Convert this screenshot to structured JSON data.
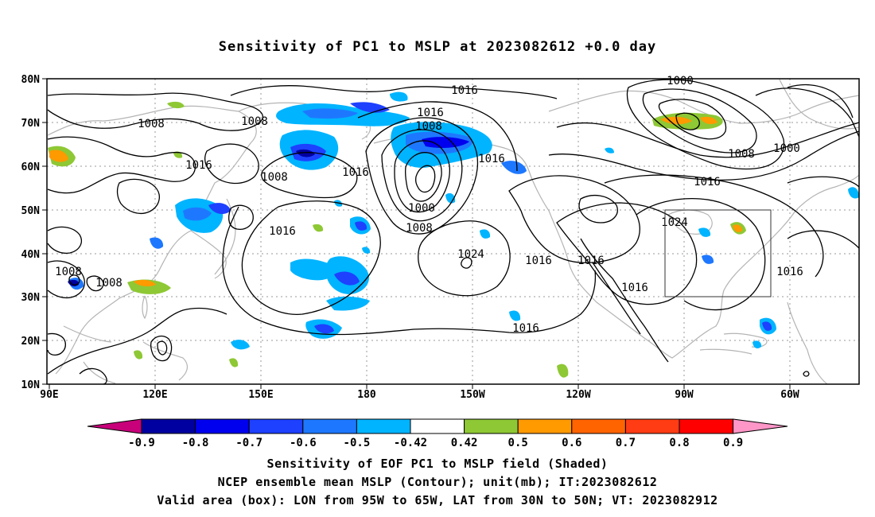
{
  "title": "Sensitivity of PC1 to MSLP at 2023082612 +0.0 day",
  "lat_labels": [
    "80N",
    "70N",
    "60N",
    "50N",
    "40N",
    "30N",
    "20N",
    "10N"
  ],
  "lon_labels": [
    "90E",
    "120E",
    "150E",
    "180",
    "150W",
    "120W",
    "90W",
    "60W"
  ],
  "contour_labels": [
    {
      "text": "1016"
    },
    {
      "text": "1016"
    },
    {
      "text": "1008"
    },
    {
      "text": "1008"
    },
    {
      "text": "1008"
    },
    {
      "text": "1016"
    },
    {
      "text": "1008"
    },
    {
      "text": "1016"
    },
    {
      "text": "1016"
    },
    {
      "text": "1000"
    },
    {
      "text": "1008"
    },
    {
      "text": "1016"
    },
    {
      "text": "1024"
    },
    {
      "text": "1016"
    },
    {
      "text": "1016"
    },
    {
      "text": "1016"
    },
    {
      "text": "1016"
    },
    {
      "text": "1000"
    },
    {
      "text": "1008"
    },
    {
      "text": "1000"
    },
    {
      "text": "1016"
    },
    {
      "text": "1024"
    },
    {
      "text": "1016"
    },
    {
      "text": "1008"
    },
    {
      "text": "1008"
    }
  ],
  "colorbar": {
    "colors": [
      "#c8007a",
      "#0000a0",
      "#0000ee",
      "#1e40ff",
      "#1e78ff",
      "#00b4ff",
      "#ffffff",
      "#8ec834",
      "#ff9a00",
      "#ff6400",
      "#ff3c14",
      "#ff0000",
      "#ff96c8"
    ],
    "labels": [
      "-0.9",
      "-0.8",
      "-0.7",
      "-0.6",
      "-0.5",
      "-0.42",
      "0.42",
      "0.5",
      "0.6",
      "0.7",
      "0.8",
      "0.9"
    ]
  },
  "valid_box": {
    "lon_from": "95W",
    "lon_to": "65W",
    "lat_from": "30N",
    "lat_to": "50N"
  },
  "captions": {
    "line1": "Sensitivity of EOF PC1 to MSLP field (Shaded)",
    "line2": "NCEP ensemble mean MSLP (Contour); unit(mb); IT:2023082612",
    "line3": "Valid area (box): LON from 95W to 65W, LAT from 30N to 50N; VT: 2023082912"
  }
}
